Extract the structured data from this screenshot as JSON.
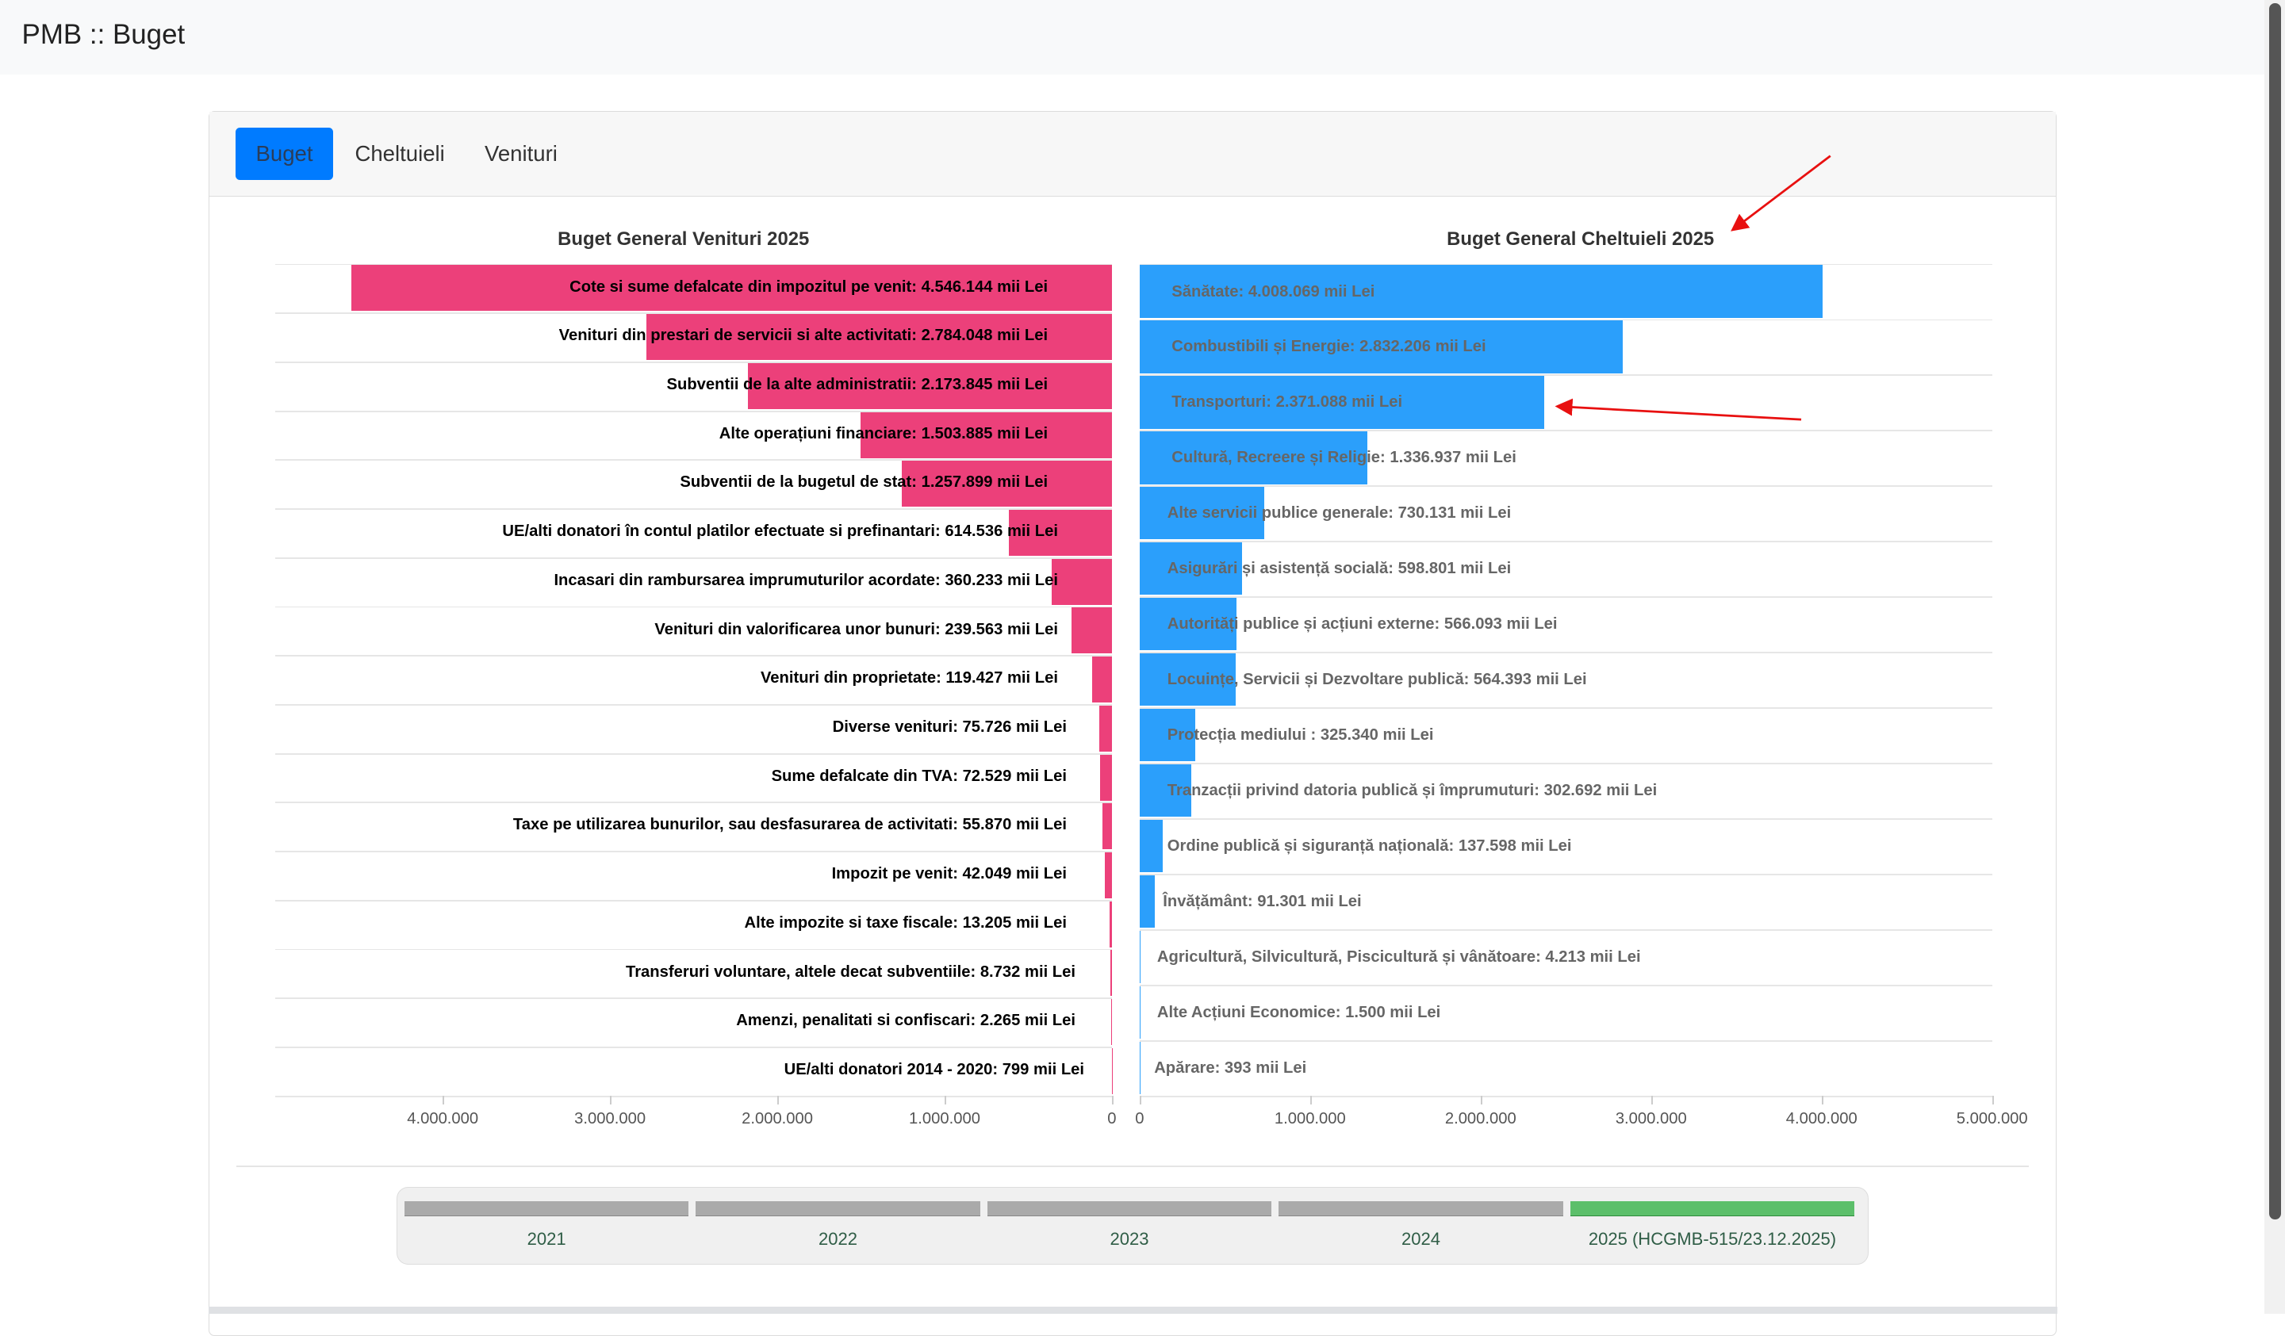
{
  "header": {
    "title": "PMB :: Buget"
  },
  "tabs": [
    {
      "label": "Buget",
      "active": true
    },
    {
      "label": "Cheltuieli",
      "active": false
    },
    {
      "label": "Venituri",
      "active": false
    }
  ],
  "colors": {
    "revenue_bar": "#ec407a",
    "expense_bar": "#2b9ffb",
    "accent": "#007bff",
    "timeline_active": "#5cbf6a",
    "annotation_arrow": "#e81010"
  },
  "chart_data": [
    {
      "type": "bar",
      "orientation": "horizontal-reversed",
      "title": "Buget General Venituri 2025",
      "xlim": [
        0,
        5000000
      ],
      "ticks": [
        "4.000.000",
        "3.000.000",
        "2.000.000",
        "1.000.000",
        "0"
      ],
      "tick_values": [
        4000000,
        3000000,
        2000000,
        1000000,
        0
      ],
      "categories": [
        "Cote si sume defalcate din impozitul pe venit",
        "Venituri din prestari de servicii si alte activitati",
        "Subventii de la alte administratii",
        "Alte operațiuni financiare",
        "Subventii de la bugetul de stat",
        "UE/alti donatori în contul platilor efectuate si prefinantari",
        "Incasari din rambursarea imprumuturilor acordate",
        "Venituri din valorificarea unor bunuri",
        "Venituri din proprietate",
        "Diverse venituri",
        "Sume defalcate din TVA",
        "Taxe pe utilizarea bunurilor, sau desfasurarea de activitati",
        "Impozit pe venit",
        "Alte impozite si taxe fiscale",
        "Transferuri voluntare, altele decat subventiile",
        "Amenzi, penalitati si confiscari",
        "UE/alti donatori 2014 - 2020"
      ],
      "values": [
        4546144,
        2784048,
        2173845,
        1503885,
        1257899,
        614536,
        360233,
        239563,
        119427,
        75726,
        72529,
        55870,
        42049,
        13205,
        8732,
        2265,
        799
      ],
      "labels": [
        "Cote si sume defalcate din impozitul pe venit: 4.546.144 mii Lei",
        "Venituri din prestari de servicii si alte activitati: 2.784.048 mii Lei",
        "Subventii de la alte administratii: 2.173.845 mii Lei",
        "Alte operațiuni financiare: 1.503.885 mii Lei",
        "Subventii de la bugetul de stat: 1.257.899 mii Lei",
        "UE/alti donatori în contul platilor efectuate si prefinantari: 614.536 mii Lei",
        "Incasari din rambursarea imprumuturilor acordate: 360.233 mii Lei",
        "Venituri din valorificarea unor bunuri: 239.563 mii Lei",
        "Venituri din proprietate: 119.427 mii Lei",
        "Diverse venituri: 75.726 mii Lei",
        "Sume defalcate din TVA: 72.529 mii Lei",
        "Taxe pe utilizarea bunurilor, sau desfasurarea de activitati: 55.870 mii Lei",
        "Impozit pe venit: 42.049 mii Lei",
        "Alte impozite si taxe fiscale: 13.205 mii Lei",
        "Transferuri voluntare, altele decat subventiile: 8.732 mii Lei",
        "Amenzi, penalitati si confiscari: 2.265 mii Lei",
        "UE/alti donatori 2014 - 2020: 799 mii Lei"
      ]
    },
    {
      "type": "bar",
      "orientation": "horizontal",
      "title": "Buget General Cheltuieli 2025",
      "xlim": [
        0,
        5000000
      ],
      "ticks": [
        "0",
        "1.000.000",
        "2.000.000",
        "3.000.000",
        "4.000.000",
        "5.000.000"
      ],
      "tick_values": [
        0,
        1000000,
        2000000,
        3000000,
        4000000,
        5000000
      ],
      "categories": [
        "Sănătate",
        "Combustibili și Energie",
        "Transporturi",
        "Cultură, Recreere și Religie",
        "Alte servicii publice generale",
        "Asigurări și asistență socială",
        "Autorități publice și acțiuni externe",
        "Locuințe, Servicii și Dezvoltare publică",
        "Protecția mediului ",
        "Tranzacții privind datoria publică și împrumuturi",
        "Ordine publică și siguranță națională",
        "Învățământ",
        "Agricultură, Silvicultură, Piscicultură și vânătoare",
        "Alte Acțiuni Economice",
        "Apărare"
      ],
      "values": [
        4008069,
        2832206,
        2371088,
        1336937,
        730131,
        598801,
        566093,
        564393,
        325340,
        302692,
        137598,
        91301,
        4213,
        1500,
        393
      ],
      "labels": [
        "Sănătate: 4.008.069 mii Lei",
        "Combustibili și Energie: 2.832.206 mii Lei",
        "Transporturi: 2.371.088 mii Lei",
        "Cultură, Recreere și Religie: 1.336.937 mii Lei",
        "Alte servicii publice generale: 730.131 mii Lei",
        "Asigurări și asistență socială: 598.801 mii Lei",
        "Autorități publice și acțiuni externe: 566.093 mii Lei",
        "Locuințe, Servicii și Dezvoltare publică: 564.393 mii Lei",
        "Protecția mediului : 325.340 mii Lei",
        "Tranzacții privind datoria publică și împrumuturi: 302.692 mii Lei",
        "Ordine publică și siguranță națională: 137.598 mii Lei",
        "Învățământ: 91.301 mii Lei",
        "Agricultură, Silvicultură, Piscicultură și vânătoare: 4.213 mii Lei",
        "Alte Acțiuni Economice: 1.500 mii Lei",
        "Apărare: 393 mii Lei"
      ]
    }
  ],
  "timeline": {
    "items": [
      {
        "label": "2021",
        "active": false
      },
      {
        "label": "2022",
        "active": false
      },
      {
        "label": "2023",
        "active": false
      },
      {
        "label": "2024",
        "active": false
      },
      {
        "label": "2025 (HCGMB-515/23.12.2025)",
        "active": true
      }
    ]
  }
}
